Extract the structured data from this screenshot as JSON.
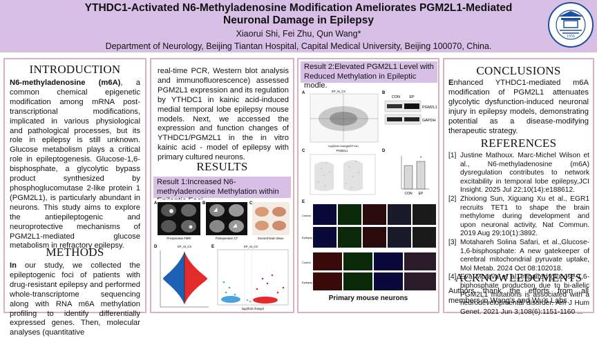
{
  "header": {
    "title_line1": "YTHDC1-Activated N6-Methyladenosine Modification Ameliorates PGM2L1-Mediated",
    "title_line2": "Neuronal Damage in Epilepsy",
    "authors": "Xiaorui Shi, Fei Zhu, Qun Wang*",
    "department": "Department of Neurology, Beijing Tiantan Hospital, Capital Medical University, Beijing 100070, China.",
    "logo": {
      "text_top": "北京天坛医院",
      "text_bottom": "BEIJING TIANTAN HOSPITAL",
      "year": "1956"
    }
  },
  "introduction": {
    "heading": "INTRODUCTION",
    "lead": "N6-methyladenosine (m6A)",
    "text": ", a common chemical epigenetic modification among mRNA post-transcriptional modifications, implicated in various physiological and pathological processes, but its role in epilepsy is still unknown. Glucose metabolism plays a critical role in epileptogenesis. Glucose-1,6-bisphosphate, a glycolytic bypass product synthesized by phosphoglucomutase 2-like protein 1 (PGM2L1), is particularly abundant in neurons. This study aims to explore the antiepileptogenic and neuroprotective mechanisms of PGM2L1-mediated glucose metabolism in refractory epilepsy."
  },
  "methods": {
    "heading": "METHODS",
    "lead": "In",
    "text": " our study, we collected the epileptogenic foci of patients with drug-resistant epilepsy and performed whole-transcriptome sequencing along with RNA m6A methylation profiling to identify differentially expressed genes. Then, molecular analyses (quantitative",
    "continued": "real-time PCR, Western blot analysis and immunofluorescence) assessed PGM2L1 expression and its regulation by YTHDC1 in kainic acid-induced medial temporal lobe epilepsy mouse models. Next, we accessed the expression and function changes of YTHDC1/PGM2L1 in the in vitro kainic acid - model of epilepsy with primary cultured neurons."
  },
  "results": {
    "heading": "RESULTS",
    "result1": "Result 1:Increased N6-methyladenosine Methylation within Epileptic Foci.",
    "result2": "Result 2:Elevated PGM2L1 Level with Reduced Methylation in Epileptic modle.",
    "fig1": {
      "labels": [
        "A",
        "B",
        "C",
        "D",
        "E"
      ],
      "caption_a": "Preoperative FMRI",
      "caption_b": "Postoperative CT",
      "caption_c": "Excised brain tissue",
      "plot_d_title": "EP_vs_Ctr",
      "plot_e_title": "EP_vs_Ctr",
      "plot_e_xlabel": "log2(fold change)"
    },
    "fig2": {
      "labels": [
        "A",
        "B",
        "C",
        "D",
        "E"
      ],
      "scatter_title": "EP_vs_Ctr",
      "scatter_xlabel": "log2(fold change(EP:ctr)",
      "wb_con": "CON",
      "wb_ep": "EP",
      "wb_band1": "PGM2L1",
      "wb_band2": "GAPDH",
      "violin_title": "PGM2L1",
      "violin_ylabel": "Expression Level",
      "bar_ylabel": "Relative PGM2L1 level",
      "bar_categories": [
        "CON",
        "EP"
      ],
      "bar_star": "*",
      "if_row_labels": [
        "Control",
        "Epilepsy",
        "Control",
        "Epilepsy"
      ],
      "if_channels_top": [
        "DAPI",
        "NEUN",
        "PGM2L1",
        "MERGE"
      ],
      "if_channels_bottom": [
        "PGM2L1",
        "NEUN",
        "DAPI",
        "MERGE"
      ],
      "caption": "Primary mouse neurons"
    }
  },
  "conclusions": {
    "heading": "CONCLUSIONS",
    "lead": "E",
    "text": "nhanced YTHDC1-mediated m6A modification of PGM2L1 attenuates glycolytic dysfunction-induced neuronal injury in epilepsy models, demonstrating potential as a disease-modifying therapeutic strategy."
  },
  "references": {
    "heading": "REFERENCES",
    "items": [
      {
        "num": "[1]",
        "text": "Justine Mathoux. Marc-Michel Wilson et al., N6-methyladenosine (m6A) dysregulation contributes to network excitability in temporal lobe epilepsy,JCI Insight. 2025 Jul 22;10(14):e188612."
      },
      {
        "num": "[2]",
        "text": "Zhixiong Sun, Xiguang Xu et al., EGR1 recruits TET1 to shape the brain methylome during development and upon neuronal activity, Nat Commun. 2019 Aug 29;10(1):3892."
      },
      {
        "num": "[3]",
        "text": "Motahareh Solina Safari, et al.,Glucose-1,6-bisphosphate: A new gatekeeper of cerebral mitochondrial pyruvate uptake, Mol Metab. 2024 Oct 08:102018."
      },
      {
        "num": "[4]",
        "text": "Eva Morava et al.,Impaired glucose-1,6-biphosphate production due to bi-allelic PGM2L1 mutations is associated with a neurodevelopmental disorder. Am J Hum Genet. 2021 Jun 3;108(6):1151-1160 ..."
      }
    ]
  },
  "acknowledgments": {
    "heading": "ACKNOWLEDGMENTS",
    "text": "Authors thank the efforts from all members in Wang's and Wu's Labs."
  },
  "colors": {
    "header_bg": "#d7bfe6",
    "panel_border": "#d8b3ba",
    "logo_blue": "#1d4f9c"
  }
}
